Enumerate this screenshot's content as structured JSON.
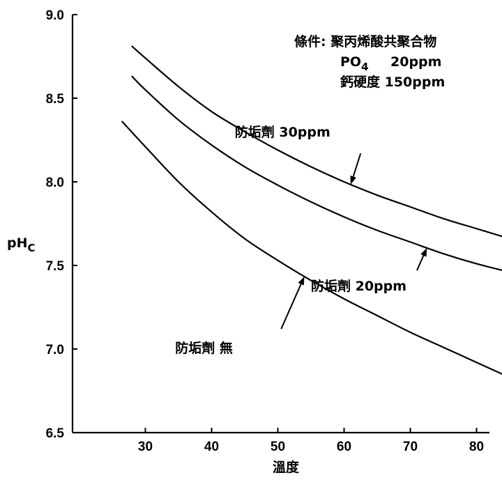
{
  "chart_data": {
    "type": "line",
    "xlabel": "溫度",
    "ylabel": "pH",
    "ylabel_sub": "C",
    "xlim": [
      22,
      85
    ],
    "ylim": [
      6.5,
      9.0
    ],
    "x_ticks": [
      30,
      40,
      50,
      60,
      70,
      80
    ],
    "y_ticks": [
      6.5,
      7.0,
      7.5,
      8.0,
      8.5,
      9.0
    ],
    "y_tick_labels": [
      "6.5",
      "7.0",
      "7.5",
      "8.0",
      "8.5",
      "9.0"
    ],
    "grid": false,
    "conditions": {
      "line1": "條件: 聚丙烯酸共聚合物",
      "line2_main": "PO",
      "line2_sub": "4",
      "line2_rest": "20ppm",
      "line3": "鈣硬度 150ppm"
    },
    "series": [
      {
        "name": "防垢劑 30ppm",
        "x": [
          28,
          30,
          35,
          40,
          45,
          50,
          55,
          60,
          65,
          70,
          75,
          80,
          85
        ],
        "y": [
          8.81,
          8.74,
          8.57,
          8.42,
          8.3,
          8.19,
          8.09,
          8.0,
          7.92,
          7.85,
          7.78,
          7.72,
          7.66
        ]
      },
      {
        "name": "防垢劑 20ppm",
        "x": [
          28,
          30,
          35,
          40,
          45,
          50,
          55,
          60,
          65,
          70,
          75,
          80,
          85
        ],
        "y": [
          8.63,
          8.55,
          8.37,
          8.22,
          8.09,
          7.98,
          7.88,
          7.79,
          7.71,
          7.64,
          7.57,
          7.51,
          7.46
        ]
      },
      {
        "name": "防垢劑 無",
        "x": [
          26.5,
          30,
          35,
          40,
          45,
          50,
          55,
          60,
          65,
          70,
          75,
          80,
          85
        ],
        "y": [
          8.36,
          8.21,
          8.0,
          7.82,
          7.66,
          7.53,
          7.41,
          7.3,
          7.2,
          7.1,
          7.01,
          6.92,
          6.83
        ]
      }
    ],
    "annotations": [
      {
        "series": 0,
        "text": "防垢劑 30ppm",
        "point_x": 61,
        "text_x": 43.5,
        "text_y": 8.27,
        "tail_x": 62.5,
        "tail_y": 8.17
      },
      {
        "series": 1,
        "text": "防垢劑 20ppm",
        "point_x": 72.5,
        "text_x": 55,
        "text_y": 7.35,
        "tail_x": 71,
        "tail_y": 7.47
      },
      {
        "series": 2,
        "text": "防垢劑 無",
        "point_x": 54,
        "text_x": 34.5,
        "text_y": 6.98,
        "tail_x": 50.5,
        "tail_y": 7.12
      }
    ]
  }
}
